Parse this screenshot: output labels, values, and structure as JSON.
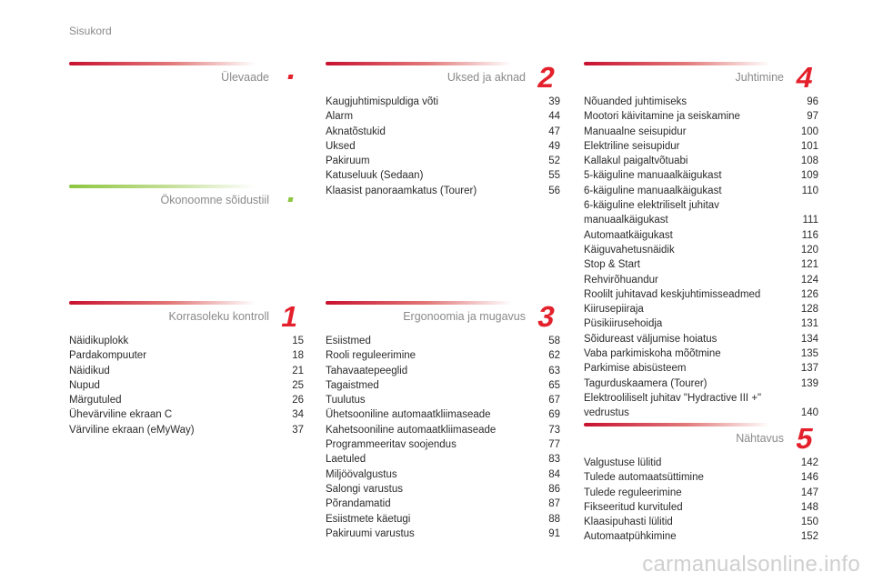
{
  "page_title": "Sisukord",
  "colors": {
    "accent_red": "#e3202b",
    "accent_green": "#8dc63f"
  },
  "sections": {
    "overview": {
      "title": "Ülevaade",
      "number": ""
    },
    "eco": {
      "title": "Ökonoomne sõidustiil",
      "number": ""
    },
    "s1": {
      "title": "Korrasoleku kontroll",
      "number": "1",
      "items": [
        {
          "label": "Näidikuplokk",
          "page": "15"
        },
        {
          "label": "Pardakompuuter",
          "page": "18"
        },
        {
          "label": "Näidikud",
          "page": "21"
        },
        {
          "label": "Nupud",
          "page": "25"
        },
        {
          "label": "Märgutuled",
          "page": "26"
        },
        {
          "label": "Ühevärviline ekraan C",
          "page": "34"
        },
        {
          "label": "Värviline ekraan (eMyWay)",
          "page": "37"
        }
      ]
    },
    "s2": {
      "title": "Uksed ja aknad",
      "number": "2",
      "items": [
        {
          "label": "Kaugjuhtimispuldiga võti",
          "page": "39"
        },
        {
          "label": "Alarm",
          "page": "44"
        },
        {
          "label": "Aknatõstukid",
          "page": "47"
        },
        {
          "label": "Uksed",
          "page": "49"
        },
        {
          "label": "Pakiruum",
          "page": "52"
        },
        {
          "label": "Katuseluuk (Sedaan)",
          "page": "55"
        },
        {
          "label": "Klaasist panoraamkatus (Tourer)",
          "page": "56"
        }
      ]
    },
    "s3": {
      "title": "Ergonoomia ja mugavus",
      "number": "3",
      "items": [
        {
          "label": "Esiistmed",
          "page": "58"
        },
        {
          "label": "Rooli reguleerimine",
          "page": "62"
        },
        {
          "label": "Tahavaatepeeglid",
          "page": "63"
        },
        {
          "label": "Tagaistmed",
          "page": "65"
        },
        {
          "label": "Tuulutus",
          "page": "67"
        },
        {
          "label": "Ühetsooniline automaatkliimaseade",
          "page": "69"
        },
        {
          "label": "Kahetsooniline automaatkliimaseade",
          "page": "73"
        },
        {
          "label": "Programmeeritav soojendus",
          "page": "77"
        },
        {
          "label": "Laetuled",
          "page": "83"
        },
        {
          "label": "Miljöövalgustus",
          "page": "84"
        },
        {
          "label": "Salongi varustus",
          "page": "86"
        },
        {
          "label": "Põrandamatid",
          "page": "87"
        },
        {
          "label": "Esiistmete käetugi",
          "page": "88"
        },
        {
          "label": "Pakiruumi varustus",
          "page": "91"
        }
      ]
    },
    "s4": {
      "title": "Juhtimine",
      "number": "4",
      "items": [
        {
          "label": "Nõuanded juhtimiseks",
          "page": "96"
        },
        {
          "label": "Mootori käivitamine ja seiskamine",
          "page": "97"
        },
        {
          "label": "Manuaalne seisupidur",
          "page": "100"
        },
        {
          "label": "Elektriline seisupidur",
          "page": "101"
        },
        {
          "label": "Kallakul paigaltvõtuabi",
          "page": "108"
        },
        {
          "label": "5-käiguline manuaalkäigukast",
          "page": "109"
        },
        {
          "label": "6-käiguline manuaalkäigukast",
          "page": "110"
        },
        {
          "label": "6-käiguline elektriliselt juhitav manuaalkäigukast",
          "page": "111"
        },
        {
          "label": "Automaatkäigukast",
          "page": "116"
        },
        {
          "label": "Käiguvahetusnäidik",
          "page": "120"
        },
        {
          "label": "Stop & Start",
          "page": "121"
        },
        {
          "label": "Rehvirõhuandur",
          "page": "124"
        },
        {
          "label": "Roolilt juhitavad keskjuhtimisseadmed",
          "page": "126"
        },
        {
          "label": "Kiirusepiiraja",
          "page": "128"
        },
        {
          "label": "Püsikiirusehoidja",
          "page": "131"
        },
        {
          "label": "Sõidureast väljumise hoiatus",
          "page": "134"
        },
        {
          "label": "Vaba parkimiskoha mõõtmine",
          "page": "135"
        },
        {
          "label": "Parkimise abisüsteem",
          "page": "137"
        },
        {
          "label": "Tagurduskaamera (Tourer)",
          "page": "139"
        },
        {
          "label": "Elektrooliliselt juhitav \"Hydractive III +\" vedrustus",
          "page": "140"
        }
      ]
    },
    "s5": {
      "title": "Nähtavus",
      "number": "5",
      "items": [
        {
          "label": "Valgustuse lülitid",
          "page": "142"
        },
        {
          "label": "Tulede automaatsüttimine",
          "page": "146"
        },
        {
          "label": "Tulede reguleerimine",
          "page": "147"
        },
        {
          "label": "Fikseeritud kurvituled",
          "page": "148"
        },
        {
          "label": "Klaasipuhasti lülitid",
          "page": "150"
        },
        {
          "label": "Automaatpühkimine",
          "page": "152"
        }
      ]
    }
  },
  "watermark": "carmanualsonline.info"
}
